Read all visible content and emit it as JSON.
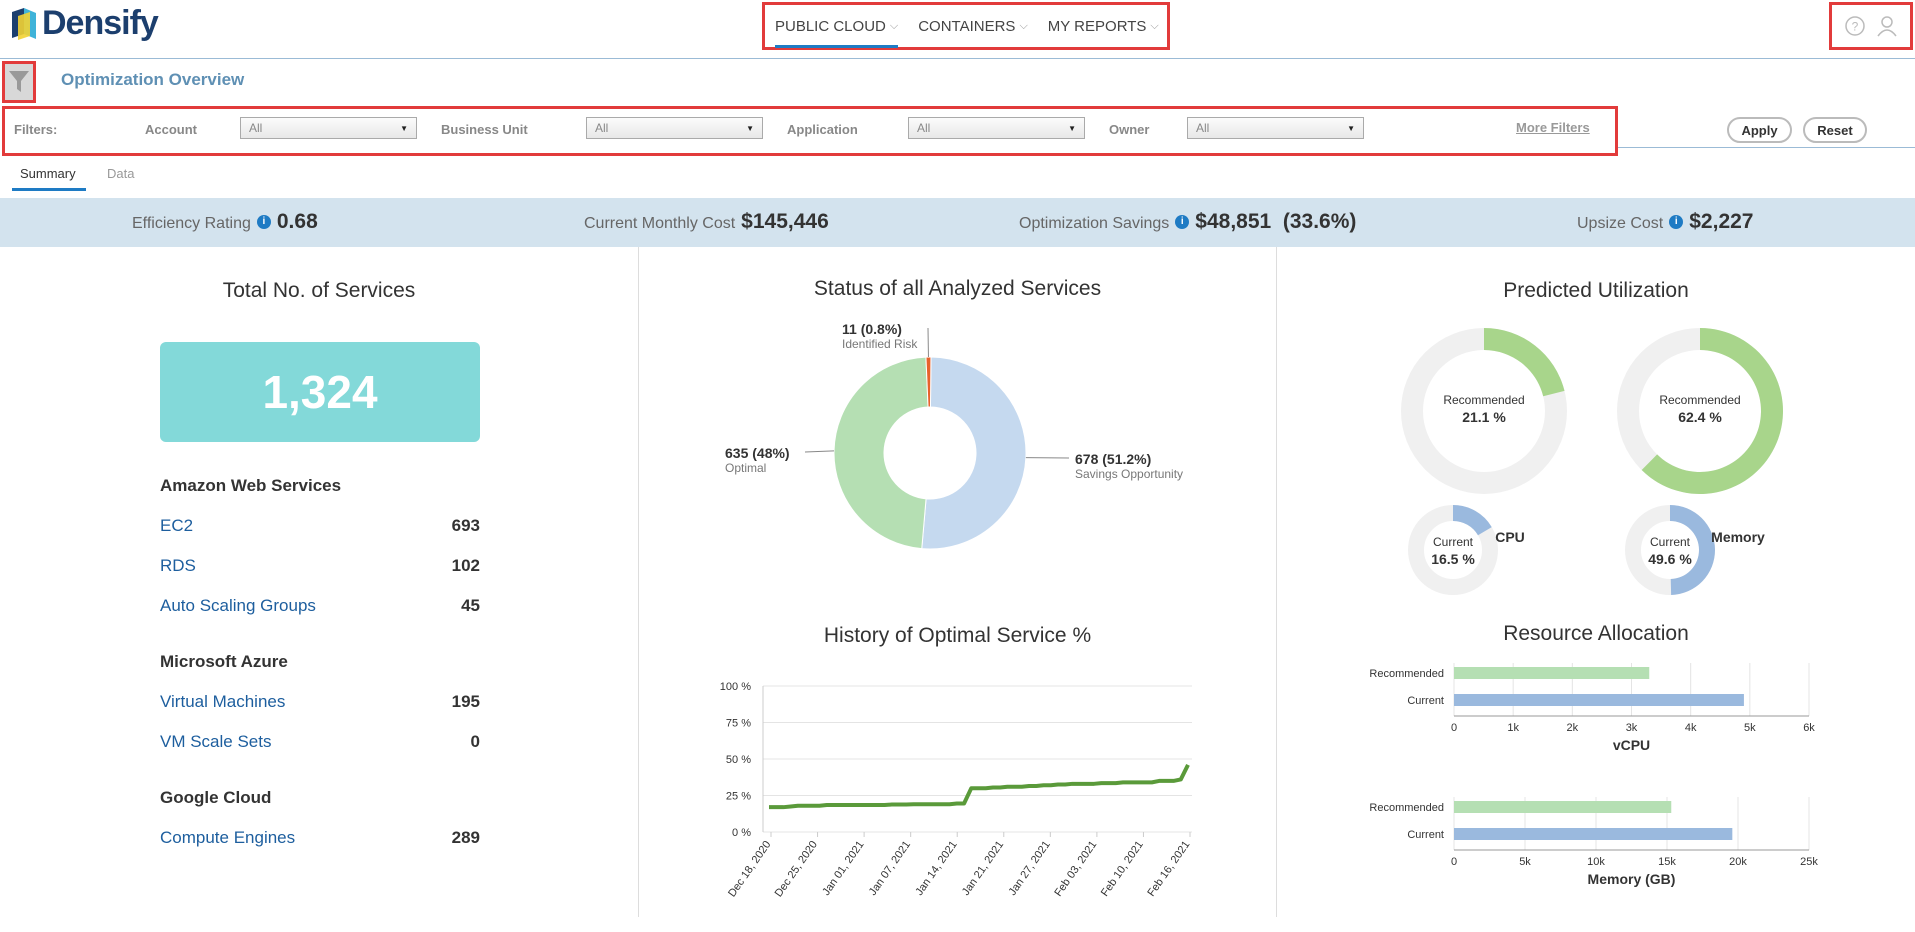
{
  "app": {
    "brand": "Densify",
    "nav": [
      {
        "label": "PUBLIC CLOUD"
      },
      {
        "label": "CONTAINERS"
      },
      {
        "label": "MY REPORTS"
      }
    ]
  },
  "page": {
    "title": "Optimization Overview"
  },
  "filters": {
    "label": "Filters:",
    "fields": [
      {
        "label": "Account",
        "value": "All"
      },
      {
        "label": "Business Unit",
        "value": "All"
      },
      {
        "label": "Application",
        "value": "All"
      },
      {
        "label": "Owner",
        "value": "All"
      }
    ],
    "more": "More Filters",
    "apply": "Apply",
    "reset": "Reset"
  },
  "tabs": [
    {
      "label": "Summary",
      "active": true
    },
    {
      "label": "Data",
      "active": false
    }
  ],
  "kpis": [
    {
      "label": "Efficiency Rating",
      "value": "0.68"
    },
    {
      "label": "Current Monthly Cost",
      "value": "$145,446"
    },
    {
      "label": "Optimization Savings",
      "value": "$48,851  (33.6%)"
    },
    {
      "label": "Upsize Cost",
      "value": "$2,227"
    }
  ],
  "services": {
    "title": "Total No. of Services",
    "total": "1,324",
    "groups": [
      {
        "name": "Amazon Web Services",
        "items": [
          {
            "name": "EC2",
            "count": "693"
          },
          {
            "name": "RDS",
            "count": "102"
          },
          {
            "name": "Auto Scaling Groups",
            "count": "45"
          }
        ]
      },
      {
        "name": "Microsoft Azure",
        "items": [
          {
            "name": "Virtual Machines",
            "count": "195"
          },
          {
            "name": "VM Scale Sets",
            "count": "0"
          }
        ]
      },
      {
        "name": "Google Cloud",
        "items": [
          {
            "name": "Compute Engines",
            "count": "289"
          }
        ]
      }
    ]
  },
  "chart_data": [
    {
      "type": "pie",
      "title": "Status of all Analyzed Services",
      "slices": [
        {
          "label": "Savings Opportunity",
          "value": 678,
          "text": "678 (51.2%)",
          "color": "#c5d9ef"
        },
        {
          "label": "Optimal",
          "value": 635,
          "text": "635 (48%)",
          "color": "#b5dfb3"
        },
        {
          "label": "Identified Risk",
          "value": 11,
          "text": "11 (0.8%)",
          "color": "#e8622c"
        }
      ]
    },
    {
      "type": "line",
      "title": "History of Optimal Service %",
      "ylim": [
        0,
        100
      ],
      "yticks": [
        "0 %",
        "25 %",
        "50 %",
        "75 %",
        "100 %"
      ],
      "xticks": [
        "Dec 18, 2020",
        "Dec 25, 2020",
        "Jan 01, 2021",
        "Jan 07, 2021",
        "Jan 14, 2021",
        "Jan 21, 2021",
        "Jan 27, 2021",
        "Feb 03, 2021",
        "Feb 10, 2021",
        "Feb 16, 2021"
      ],
      "series": [
        {
          "color": "#5a9a3a",
          "values": [
            17,
            17,
            17,
            17.5,
            18,
            18,
            18,
            18,
            18.5,
            18.5,
            18.5,
            18.5,
            18.5,
            18.5,
            18.5,
            18.5,
            18.5,
            18.8,
            18.8,
            18.8,
            19,
            19,
            19,
            19,
            19,
            19,
            19.5,
            19.5,
            30,
            30,
            30,
            30.5,
            30.5,
            31,
            31,
            31,
            31.5,
            31.5,
            32,
            32,
            32.5,
            32.5,
            33,
            33,
            33,
            33,
            33.5,
            33.5,
            33.5,
            34,
            34,
            34,
            34,
            34,
            35,
            35,
            35,
            36,
            46
          ]
        }
      ]
    },
    {
      "type": "pie",
      "title": "Predicted Utilization",
      "subtitle": "CPU",
      "rings": [
        {
          "name": "Recommended",
          "value": 21.1,
          "text": "21.1 %",
          "color": "#a8d58b"
        },
        {
          "name": "Current",
          "value": 16.5,
          "text": "16.5 %",
          "color": "#9ab9de"
        }
      ]
    },
    {
      "type": "pie",
      "subtitle": "Memory",
      "rings": [
        {
          "name": "Recommended",
          "value": 62.4,
          "text": "62.4 %",
          "color": "#a8d58b"
        },
        {
          "name": "Current",
          "value": 49.6,
          "text": "49.6 %",
          "color": "#9ab9de"
        }
      ]
    },
    {
      "type": "bar",
      "title": "Resource Allocation",
      "xlabel": "vCPU",
      "categories": [
        "Recommended",
        "Current"
      ],
      "values": [
        3300,
        4900
      ],
      "colors": [
        "#b5dfb3",
        "#9ab9de"
      ],
      "xlim": [
        0,
        6000
      ],
      "xticks": [
        "0",
        "1k",
        "2k",
        "3k",
        "4k",
        "5k",
        "6k"
      ]
    },
    {
      "type": "bar",
      "xlabel": "Memory (GB)",
      "categories": [
        "Recommended",
        "Current"
      ],
      "values": [
        15300,
        19600
      ],
      "colors": [
        "#b5dfb3",
        "#9ab9de"
      ],
      "xlim": [
        0,
        25000
      ],
      "xticks": [
        "0",
        "5k",
        "10k",
        "15k",
        "20k",
        "25k"
      ]
    }
  ],
  "icons": {
    "logo": "densify-logo-icon",
    "filter": "funnel-icon",
    "help": "help-icon",
    "user": "user-icon",
    "info": "info-icon"
  }
}
